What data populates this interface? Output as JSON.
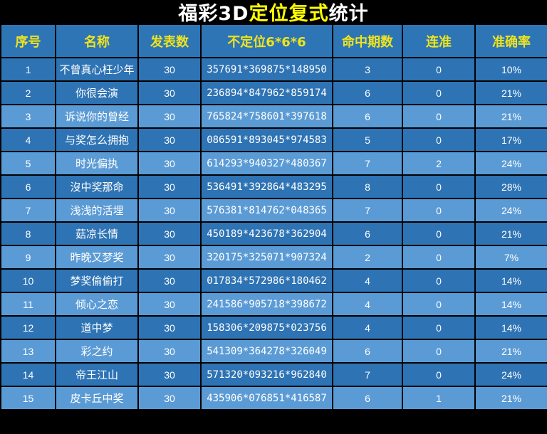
{
  "title": {
    "part1": "福彩3D",
    "part2": "定位复式",
    "part3": "统计"
  },
  "columns": [
    "序号",
    "名称",
    "发表数",
    "不定位6*6*6",
    "命中期数",
    "连准",
    "准确率"
  ],
  "rows": [
    {
      "no": "1",
      "name": "不曾真心枉少年",
      "published": "30",
      "combo": "357691*369875*148950",
      "hits": "3",
      "streak": "0",
      "accuracy": "10%",
      "variant": "dark"
    },
    {
      "no": "2",
      "name": "你很会演",
      "published": "30",
      "combo": "236894*847962*859174",
      "hits": "6",
      "streak": "0",
      "accuracy": "21%",
      "variant": "dark"
    },
    {
      "no": "3",
      "name": "诉说你的曾经",
      "published": "30",
      "combo": "765824*758601*397618",
      "hits": "6",
      "streak": "0",
      "accuracy": "21%",
      "variant": "light"
    },
    {
      "no": "4",
      "name": "与奖怎么拥抱",
      "published": "30",
      "combo": "086591*893045*974583",
      "hits": "5",
      "streak": "0",
      "accuracy": "17%",
      "variant": "dark"
    },
    {
      "no": "5",
      "name": "时光偏执",
      "published": "30",
      "combo": "614293*940327*480367",
      "hits": "7",
      "streak": "2",
      "accuracy": "24%",
      "variant": "light"
    },
    {
      "no": "6",
      "name": "沒中奖那命",
      "published": "30",
      "combo": "536491*392864*483295",
      "hits": "8",
      "streak": "0",
      "accuracy": "28%",
      "variant": "dark"
    },
    {
      "no": "7",
      "name": "浅浅的活埋",
      "published": "30",
      "combo": "576381*814762*048365",
      "hits": "7",
      "streak": "0",
      "accuracy": "24%",
      "variant": "light"
    },
    {
      "no": "8",
      "name": "菇凉长情",
      "published": "30",
      "combo": "450189*423678*362904",
      "hits": "6",
      "streak": "0",
      "accuracy": "21%",
      "variant": "dark"
    },
    {
      "no": "9",
      "name": "昨晚又梦奖",
      "published": "30",
      "combo": "320175*325071*907324",
      "hits": "2",
      "streak": "0",
      "accuracy": "7%",
      "variant": "light"
    },
    {
      "no": "10",
      "name": "梦奖偷偷打",
      "published": "30",
      "combo": "017834*572986*180462",
      "hits": "4",
      "streak": "0",
      "accuracy": "14%",
      "variant": "dark"
    },
    {
      "no": "11",
      "name": "倾心之恋",
      "published": "30",
      "combo": "241586*905718*398672",
      "hits": "4",
      "streak": "0",
      "accuracy": "14%",
      "variant": "light"
    },
    {
      "no": "12",
      "name": "道中梦",
      "published": "30",
      "combo": "158306*209875*023756",
      "hits": "4",
      "streak": "0",
      "accuracy": "14%",
      "variant": "dark"
    },
    {
      "no": "13",
      "name": "彩之约",
      "published": "30",
      "combo": "541309*364278*326049",
      "hits": "6",
      "streak": "0",
      "accuracy": "21%",
      "variant": "light"
    },
    {
      "no": "14",
      "name": "帝王江山",
      "published": "30",
      "combo": "571320*093216*962840",
      "hits": "7",
      "streak": "0",
      "accuracy": "24%",
      "variant": "dark"
    },
    {
      "no": "15",
      "name": "皮卡丘中奖",
      "published": "30",
      "combo": "435906*076851*416587",
      "hits": "6",
      "streak": "1",
      "accuracy": "21%",
      "variant": "light"
    }
  ],
  "colors": {
    "header_bg": "#2E75B6",
    "row_dark": "#2E73B4",
    "row_light": "#5B9BD5",
    "header_text": "#EFE41C",
    "title_text": "#FFFFFF",
    "title_highlight": "#FFFF00",
    "border": "#000000",
    "cell_text": "#FFFFFF"
  }
}
